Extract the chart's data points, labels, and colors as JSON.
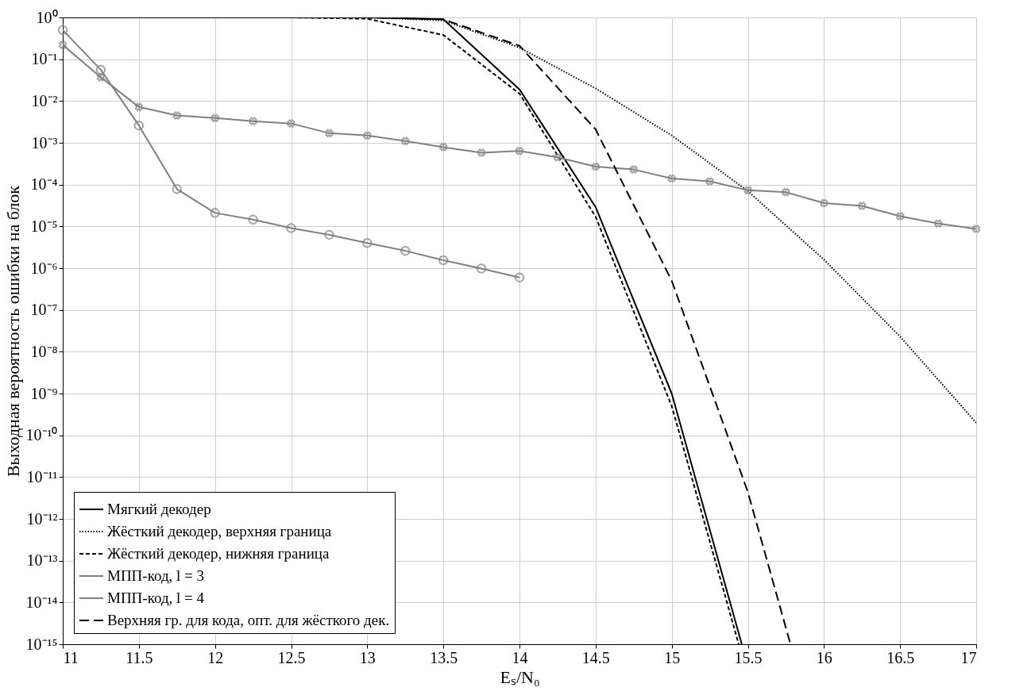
{
  "chart_data": {
    "type": "line",
    "xlabel": "Eₛ/N₀",
    "ylabel": "Выходная вероятность ошибки на блок",
    "log": "y",
    "grid": true,
    "legend": "bottom left",
    "xlim": [
      11,
      17
    ],
    "xticks": [
      11,
      11.5,
      12,
      12.5,
      13,
      13.5,
      14,
      14.5,
      15,
      15.5,
      16,
      16.5,
      17
    ],
    "ylim": [
      1e-15,
      1
    ],
    "yticks": [
      {
        "value": 1,
        "label": "10⁰"
      },
      {
        "value": 0.1,
        "label": "10⁻¹"
      },
      {
        "value": 0.01,
        "label": "10⁻²"
      },
      {
        "value": 0.001,
        "label": "10⁻³"
      },
      {
        "value": 0.0001,
        "label": "10⁻⁴"
      },
      {
        "value": 1e-05,
        "label": "10⁻⁵"
      },
      {
        "value": 1e-06,
        "label": "10⁻⁶"
      },
      {
        "value": 1e-07,
        "label": "10⁻⁷"
      },
      {
        "value": 1e-08,
        "label": "10⁻⁸"
      },
      {
        "value": 1e-09,
        "label": "10⁻⁹"
      },
      {
        "value": 1e-10,
        "label": "10⁻¹⁰"
      },
      {
        "value": 1e-11,
        "label": "10⁻¹¹"
      },
      {
        "value": 1e-12,
        "label": "10⁻¹²"
      },
      {
        "value": 1e-13,
        "label": "10⁻¹³"
      },
      {
        "value": 1e-14,
        "label": "10⁻¹⁴"
      },
      {
        "value": 1e-15,
        "label": "10⁻¹⁵"
      }
    ],
    "series": [
      {
        "name": "Мягкий декодер",
        "color": "#000000",
        "line_style": "solid",
        "marker": "none",
        "x": [
          11,
          13,
          13.5,
          14,
          14.5,
          15,
          15.46
        ],
        "values": [
          1,
          1,
          0.91,
          0.019,
          2.9e-05,
          1e-09,
          1e-15
        ]
      },
      {
        "name": "Жёсткий декодер, верхняя граница",
        "color": "#000000",
        "line_style": "dotted",
        "marker": "none",
        "x": [
          11,
          13,
          13.5,
          14,
          14.5,
          15,
          15.5,
          16,
          16.5,
          17
        ],
        "values": [
          1,
          1,
          0.85,
          0.19,
          0.02,
          0.0015,
          7e-05,
          1.6e-06,
          2.3e-08,
          2e-10
        ]
      },
      {
        "name": "Жёсткий декодер, нижняя граница",
        "color": "#000000",
        "line_style": "dashed",
        "marker": "none",
        "x": [
          11,
          12.5,
          13,
          13.5,
          14,
          14.5,
          15,
          15.44
        ],
        "values": [
          1,
          1,
          0.93,
          0.38,
          0.015,
          1.7e-05,
          5e-10,
          1e-15
        ]
      },
      {
        "name": "МПП-код, l = 3",
        "color": "#808080",
        "line_style": "solid",
        "marker": "cross",
        "x": [
          11,
          11.25,
          11.5,
          11.75,
          12,
          12.25,
          12.5,
          12.75,
          13,
          13.25,
          13.5,
          13.75,
          14,
          14.25,
          14.5,
          14.75,
          15,
          15.25,
          15.5,
          15.75,
          16,
          16.25,
          16.5,
          16.75,
          17
        ],
        "values": [
          0.22,
          0.037,
          0.0072,
          0.0045,
          0.0039,
          0.0033,
          0.0029,
          0.0017,
          0.0015,
          0.0011,
          0.00079,
          0.00058,
          0.00064,
          0.00045,
          0.00027,
          0.00023,
          0.00014,
          0.00012,
          7.3e-05,
          6.6e-05,
          3.6e-05,
          3.1e-05,
          1.75e-05,
          1.17e-05,
          8.7e-06
        ]
      },
      {
        "name": "МПП-код, l = 4",
        "color": "#808080",
        "line_style": "solid",
        "marker": "circle",
        "x": [
          11,
          11.25,
          11.5,
          11.75,
          12,
          12.25,
          12.5,
          12.75,
          13,
          13.25,
          13.5,
          13.75,
          14
        ],
        "values": [
          0.5,
          0.056,
          0.0026,
          7.8e-05,
          2.1e-05,
          1.45e-05,
          9.1e-06,
          6.3e-06,
          4e-06,
          2.6e-06,
          1.55e-06,
          9.8e-07,
          6e-07
        ]
      },
      {
        "name": "Верхняя гр. для кода, опт. для жёсткого дек.",
        "color": "#000000",
        "line_style": "dashed",
        "marker": "none",
        "x": [
          11,
          13,
          13.5,
          14,
          14.5,
          15,
          15.5,
          15.78
        ],
        "values": [
          1,
          1,
          0.9,
          0.21,
          0.0021,
          5e-07,
          4.4e-12,
          1e-15
        ]
      }
    ]
  }
}
